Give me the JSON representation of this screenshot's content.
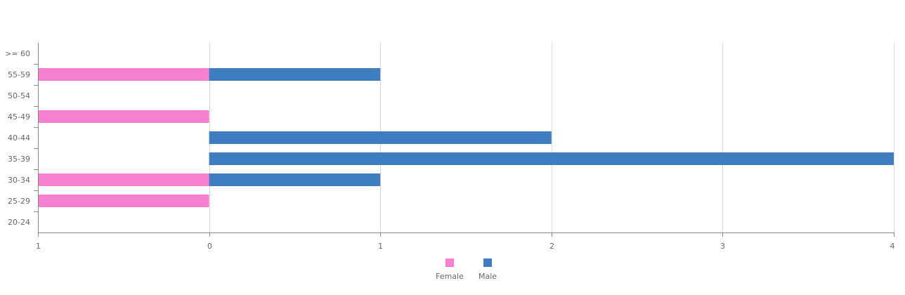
{
  "chart_data": {
    "type": "bar",
    "orientation": "horizontal",
    "diverging": true,
    "title": "",
    "xlabel": "",
    "ylabel": "",
    "categories": [
      ">= 60",
      "55-59",
      "50-54",
      "45-49",
      "40-44",
      "35-39",
      "30-34",
      "25-29",
      "20-24"
    ],
    "x_ticks": [
      "1",
      "0",
      "1",
      "2",
      "3",
      "4"
    ],
    "xlim": [
      -1,
      4
    ],
    "grid": true,
    "legend_position": "bottom-center",
    "series": [
      {
        "name": "Female",
        "color": "#f77fcf",
        "values": [
          0,
          1,
          0,
          1,
          0,
          0,
          1,
          1,
          0
        ]
      },
      {
        "name": "Male",
        "color": "#3e7dbf",
        "values": [
          0,
          1,
          0,
          0,
          2,
          4,
          1,
          0,
          0
        ]
      }
    ]
  }
}
